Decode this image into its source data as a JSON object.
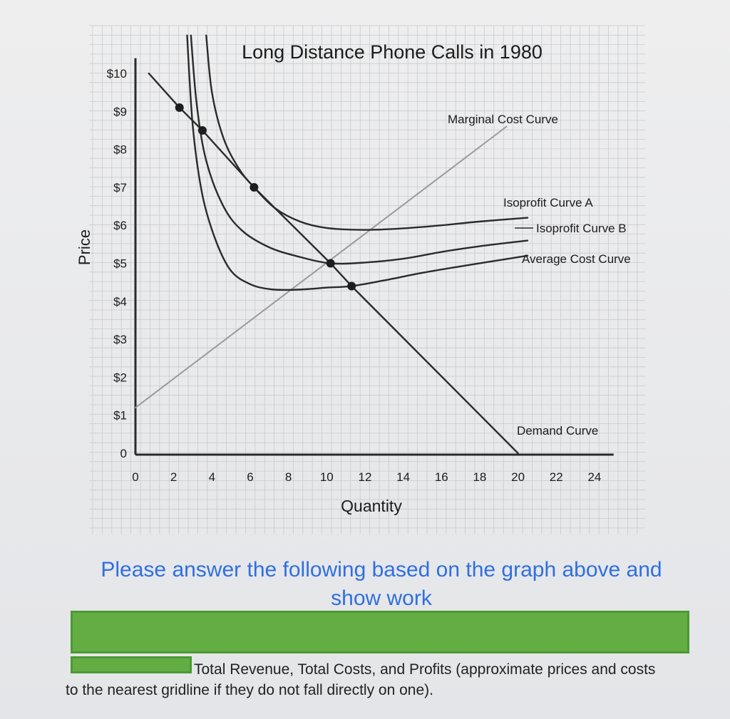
{
  "colors": {
    "grid": "#c9cbd0",
    "axis": "#2a2a2a",
    "curve_dark": "#2b2b2b",
    "curve_mc": "#9a9a9a",
    "prompt_blue": "#2f6fe0",
    "redaction_green": "#63ad43"
  },
  "chart_data": {
    "type": "line",
    "title": "Long Distance Phone Calls in 1980",
    "xlabel": "Quantity",
    "ylabel": "Price",
    "xlim": [
      0,
      24
    ],
    "ylim": [
      0,
      10
    ],
    "x_ticks": [
      "0",
      "2",
      "4",
      "6",
      "8",
      "10",
      "12",
      "14",
      "16",
      "18",
      "20",
      "22",
      "24"
    ],
    "y_ticks": [
      "0",
      "$1",
      "$2",
      "$3",
      "$4",
      "$5",
      "$6",
      "$7",
      "$8",
      "$9",
      "$10"
    ],
    "grid": true,
    "series": [
      {
        "name": "Demand Curve",
        "points": [
          [
            0.7,
            10
          ],
          [
            2.3,
            9.1
          ],
          [
            3.5,
            8.5
          ],
          [
            6.2,
            7.0
          ],
          [
            10.2,
            5.0
          ],
          [
            11.3,
            4.4
          ],
          [
            20,
            0
          ]
        ]
      },
      {
        "name": "Marginal Cost Curve",
        "points": [
          [
            0,
            1.2
          ],
          [
            19.4,
            8.6
          ]
        ]
      },
      {
        "name": "Average Cost Curve",
        "points": [
          [
            2.7,
            11.0
          ],
          [
            3.0,
            8.6
          ],
          [
            3.5,
            6.8
          ],
          [
            4.2,
            5.6
          ],
          [
            5.0,
            4.8
          ],
          [
            6.0,
            4.45
          ],
          [
            7.0,
            4.32
          ],
          [
            8.0,
            4.3
          ],
          [
            9.0,
            4.32
          ],
          [
            10.0,
            4.36
          ],
          [
            11.3,
            4.4
          ],
          [
            13,
            4.55
          ],
          [
            15,
            4.75
          ],
          [
            17,
            4.92
          ],
          [
            19,
            5.08
          ],
          [
            20.5,
            5.2
          ]
        ]
      },
      {
        "name": "Isoprofit Curve B",
        "points": [
          [
            2.9,
            11.0
          ],
          [
            3.2,
            9.2
          ],
          [
            3.7,
            7.7
          ],
          [
            4.6,
            6.5
          ],
          [
            5.6,
            5.85
          ],
          [
            7.0,
            5.42
          ],
          [
            8.5,
            5.18
          ],
          [
            10.2,
            5.0
          ],
          [
            12,
            5.02
          ],
          [
            14,
            5.12
          ],
          [
            16,
            5.3
          ],
          [
            18,
            5.45
          ],
          [
            20.5,
            5.6
          ]
        ]
      },
      {
        "name": "Isoprofit Curve A",
        "points": [
          [
            3.7,
            11.0
          ],
          [
            4.0,
            9.5
          ],
          [
            4.6,
            8.3
          ],
          [
            5.4,
            7.5
          ],
          [
            6.2,
            7.0
          ],
          [
            7.3,
            6.45
          ],
          [
            8.6,
            6.1
          ],
          [
            10.0,
            5.93
          ],
          [
            12,
            5.88
          ],
          [
            14,
            5.92
          ],
          [
            16,
            6.0
          ],
          [
            18,
            6.1
          ],
          [
            20.5,
            6.2
          ]
        ]
      }
    ],
    "marked_points": [
      {
        "x": 2.3,
        "y": 9.1
      },
      {
        "x": 3.5,
        "y": 8.5
      },
      {
        "x": 6.2,
        "y": 7.0
      },
      {
        "x": 10.2,
        "y": 5.0
      },
      {
        "x": 11.3,
        "y": 4.4
      }
    ]
  },
  "prompt": {
    "line1": "Please answer the following based on the graph above and",
    "line2": "show work"
  },
  "question": {
    "line1": "Total Revenue, Total Costs, and Profits (approximate prices and costs",
    "line2": "to the nearest gridline if they do not fall directly on one)."
  }
}
